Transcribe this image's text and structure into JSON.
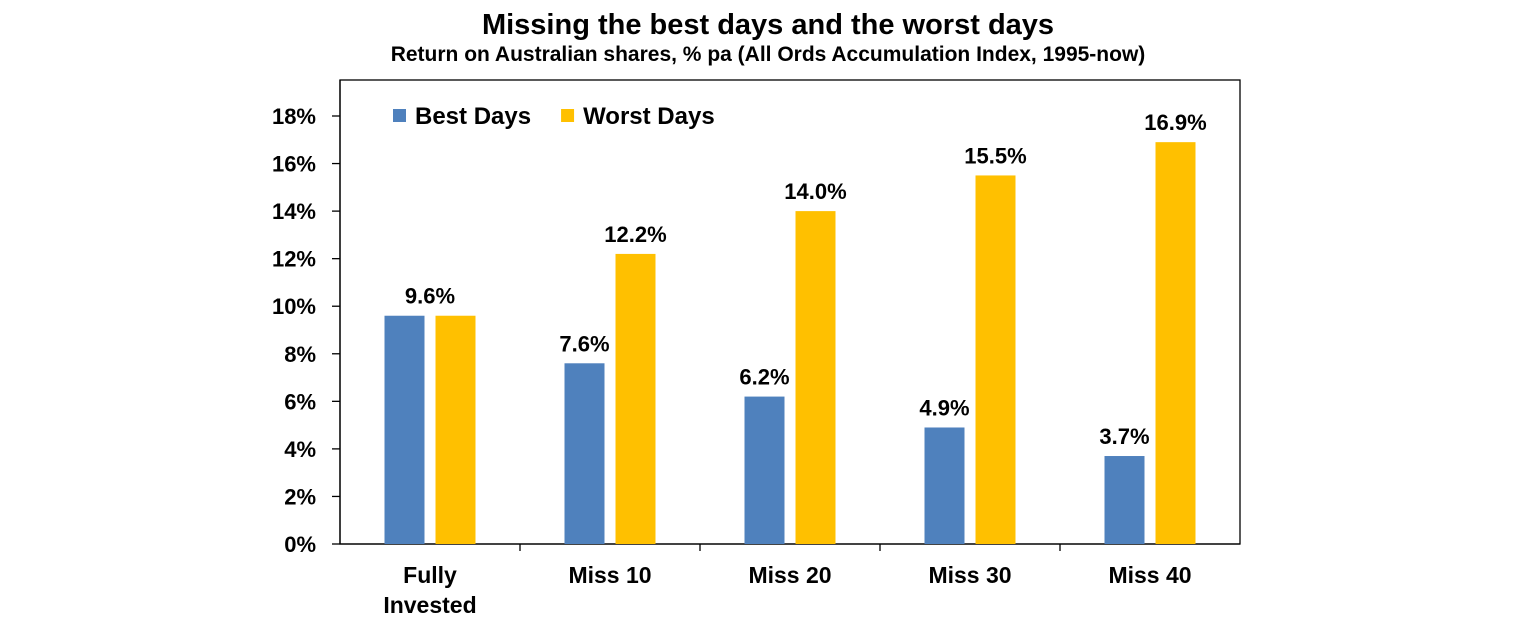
{
  "chart_data": {
    "type": "bar",
    "title": "Missing the best days and the worst days",
    "subtitle": "Return on Australian shares, % pa (All Ords Accumulation Index, 1995-now)",
    "categories": [
      [
        "Fully",
        "Invested"
      ],
      [
        "Miss 10"
      ],
      [
        "Miss 20"
      ],
      [
        "Miss 30"
      ],
      [
        "Miss 40"
      ]
    ],
    "series": [
      {
        "name": "Best Days",
        "color": "#4F81BD",
        "values": [
          9.6,
          7.6,
          6.2,
          4.9,
          3.7
        ],
        "labels": [
          "",
          "7.6%",
          "6.2%",
          "4.9%",
          "3.7%"
        ]
      },
      {
        "name": "Worst Days",
        "color": "#FFC000",
        "values": [
          9.6,
          12.2,
          14.0,
          15.5,
          16.9
        ],
        "labels": [
          "",
          "12.2%",
          "14.0%",
          "15.5%",
          "16.9%"
        ]
      }
    ],
    "group_labels": [
      "9.6%",
      "",
      "",
      "",
      ""
    ],
    "ylim": [
      0,
      18
    ],
    "yticks": [
      0,
      2,
      4,
      6,
      8,
      10,
      12,
      14,
      16,
      18
    ],
    "ytick_labels": [
      "0%",
      "2%",
      "4%",
      "6%",
      "8%",
      "10%",
      "12%",
      "14%",
      "16%",
      "18%"
    ],
    "xlabel": "",
    "ylabel": "",
    "grid": false,
    "legend_position": "top-left"
  }
}
